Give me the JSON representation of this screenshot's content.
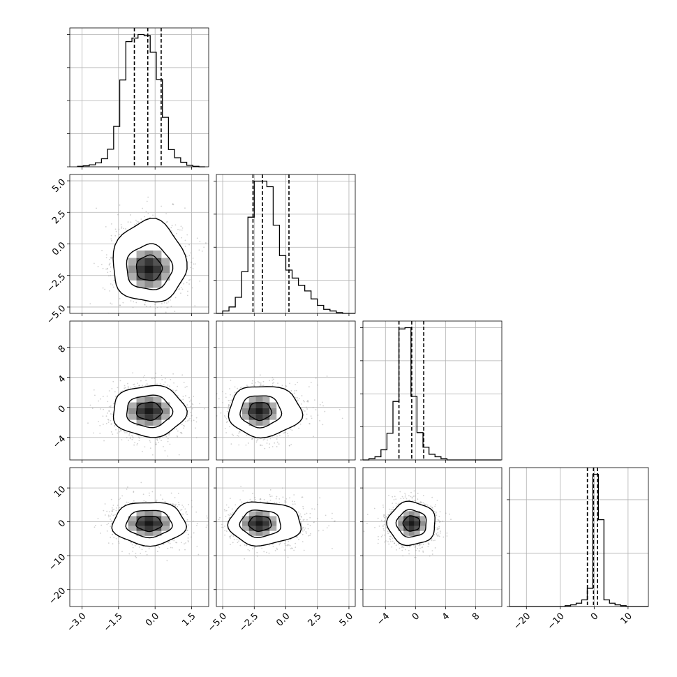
{
  "chart_data": {
    "type": "corner",
    "grid": true,
    "n_params": 4,
    "params": [
      {
        "range": [
          -3.5,
          2.2
        ],
        "ticks": [
          -3.0,
          -1.5,
          0.0,
          1.5
        ],
        "tick_labels": [
          "−3.0",
          "−1.5",
          "0.0",
          "1.5"
        ],
        "quantiles": [
          -0.85,
          -0.3,
          0.25
        ],
        "hist": {
          "bin_start": -3.2,
          "bin_width": 0.25,
          "counts": [
            1,
            2,
            4,
            8,
            16,
            35,
            80,
            172,
            248,
            255,
            262,
            260,
            227,
            173,
            98,
            34,
            18,
            9,
            3,
            1,
            0
          ]
        }
      },
      {
        "range": [
          -5.5,
          5.5
        ],
        "ticks": [
          -5.0,
          -2.5,
          0.0,
          2.5,
          5.0
        ],
        "tick_labels": [
          "−5.0",
          "−2.5",
          "0.0",
          "2.5",
          "5.0"
        ],
        "ytick_labels": [
          "5.0",
          "2.5",
          "0.0",
          "−2.5",
          "−5.0"
        ],
        "quantiles": [
          -2.6,
          -1.85,
          0.25
        ],
        "hist": {
          "bin_start": -5.5,
          "bin_width": 0.5,
          "counts": [
            0,
            3,
            8,
            20,
            52,
            120,
            165,
            165,
            158,
            110,
            72,
            54,
            44,
            35,
            28,
            18,
            10,
            5,
            3,
            1,
            0,
            0
          ]
        }
      },
      {
        "range": [
          -7.0,
          11.5
        ],
        "ticks": [
          -4,
          0,
          4,
          8
        ],
        "tick_labels": [
          "−4",
          "0",
          "4",
          "8"
        ],
        "ytick_labels": [
          "8",
          "4",
          "0",
          "−4"
        ],
        "quantiles": [
          -2.2,
          -0.5,
          1.1
        ],
        "hist": {
          "bin_start": -7.0,
          "bin_width": 0.8,
          "counts": [
            0,
            2,
            5,
            16,
            42,
            92,
            206,
            208,
            100,
            43,
            20,
            9,
            5,
            2,
            0,
            0,
            0,
            0,
            0,
            0,
            0,
            0,
            0
          ]
        }
      },
      {
        "range": [
          -25,
          16
        ],
        "ticks": [
          -20,
          -10,
          0,
          10
        ],
        "tick_labels": [
          "−20",
          "−10",
          "0",
          "10"
        ],
        "ytick_labels": [
          "10",
          "0",
          "−10",
          "−20"
        ],
        "quantiles": [
          -2.0,
          -0.2,
          1.0
        ],
        "hist": {
          "bin_start": -25,
          "bin_width": 1.64,
          "counts": [
            0,
            0,
            0,
            0,
            0,
            0,
            0,
            0,
            0,
            0,
            1,
            2,
            4,
            8,
            22,
            160,
            105,
            8,
            4,
            2,
            1,
            0,
            0,
            0,
            0
          ]
        }
      }
    ],
    "pairs": [
      {
        "row": 1,
        "col": 0,
        "center": [
          -0.25,
          -2.0
        ],
        "spread": [
          0.75,
          1.3
        ],
        "skew_y_pos": 1.6
      },
      {
        "row": 2,
        "col": 0,
        "center": [
          -0.25,
          -0.5
        ],
        "spread": [
          0.75,
          1.7
        ],
        "skew_y_pos": 0
      },
      {
        "row": 2,
        "col": 1,
        "center": [
          -2.1,
          -0.5
        ],
        "spread": [
          1.2,
          1.7
        ],
        "skew_x_pos": 1.7
      },
      {
        "row": 3,
        "col": 0,
        "center": [
          -0.25,
          -0.5
        ],
        "spread": [
          0.75,
          3.2
        ],
        "skew_y_pos": 0
      },
      {
        "row": 3,
        "col": 1,
        "center": [
          -2.1,
          -0.5
        ],
        "spread": [
          1.2,
          3.2
        ],
        "skew_x_pos": 1.7
      },
      {
        "row": 3,
        "col": 2,
        "center": [
          -0.5,
          -0.5
        ],
        "spread": [
          1.6,
          3.2
        ],
        "skew_y_pos": 0
      }
    ],
    "colors": {
      "points": "#9a9a9a",
      "line": "#000000",
      "grid": "#b0b0b0"
    }
  }
}
